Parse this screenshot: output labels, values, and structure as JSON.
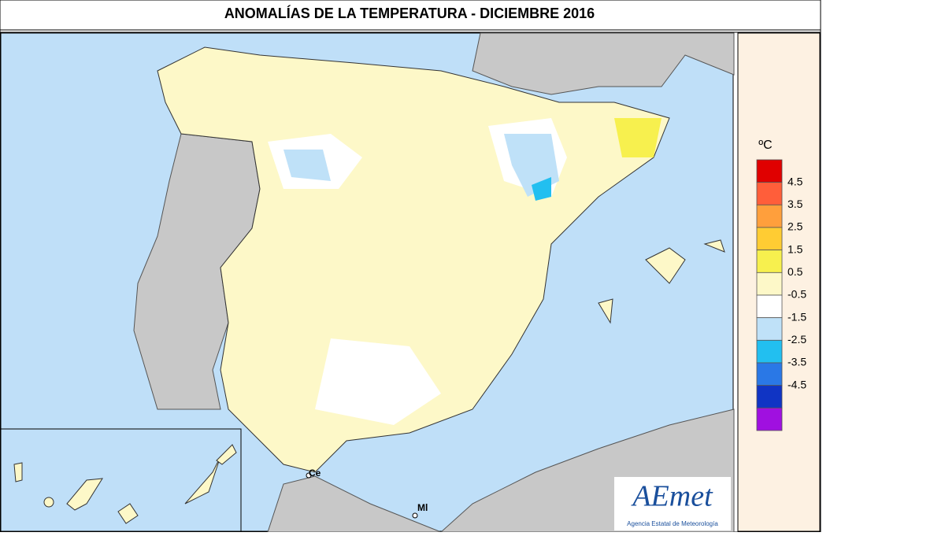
{
  "header": {
    "title": "ANOMALÍAS DE LA TEMPERATURA - DICIEMBRE 2016"
  },
  "legend": {
    "unit": "ºC",
    "colors": [
      "#e00000",
      "#ff5e3a",
      "#ff9f3c",
      "#ffcc33",
      "#f7f04e",
      "#fdf8c8",
      "#ffffff",
      "#bfe1f8",
      "#22bff0",
      "#2a78e6",
      "#1034c4",
      "#a010e0"
    ],
    "labels": [
      4.5,
      3.5,
      2.5,
      1.5,
      0.5,
      -0.5,
      -1.5,
      -2.5,
      -3.5,
      -4.5
    ]
  },
  "places": [
    {
      "label": "Ce"
    },
    {
      "label": "Ml"
    }
  ],
  "logo": {
    "name": "AEmet",
    "subtitle": "Agencia Estatal de Meteorología"
  }
}
